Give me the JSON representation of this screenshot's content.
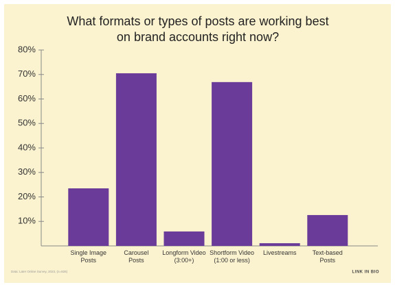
{
  "chart_data": {
    "type": "bar",
    "title": [
      "What formats or types of posts are working best",
      "on brand accounts right now?"
    ],
    "categories": [
      [
        "Single Image",
        "Posts"
      ],
      [
        "Carousel",
        "Posts"
      ],
      [
        "Longform Video",
        "(3:00+)"
      ],
      [
        "Shortform Video",
        "(1:00 or less)"
      ],
      [
        "Livestreams"
      ],
      [
        "Text-based",
        "Posts"
      ]
    ],
    "values": [
      23.5,
      70.5,
      5.9,
      66.9,
      1.1,
      12.6
    ],
    "color": "#6a3b98",
    "ylim": [
      0,
      80
    ],
    "yticks": [
      {
        "value": 10,
        "label": "10%"
      },
      {
        "value": 20,
        "label": "20%"
      },
      {
        "value": 30,
        "label": "30%"
      },
      {
        "value": 40,
        "label": "40%"
      },
      {
        "value": 50,
        "label": "50%"
      },
      {
        "value": 60,
        "label": "60%"
      },
      {
        "value": 70,
        "label": "70%"
      },
      {
        "value": 80,
        "label": "80%"
      }
    ],
    "source": "Data: Later Online Survey, 2023, (n=826)",
    "logo": "LINK IN BIO"
  }
}
